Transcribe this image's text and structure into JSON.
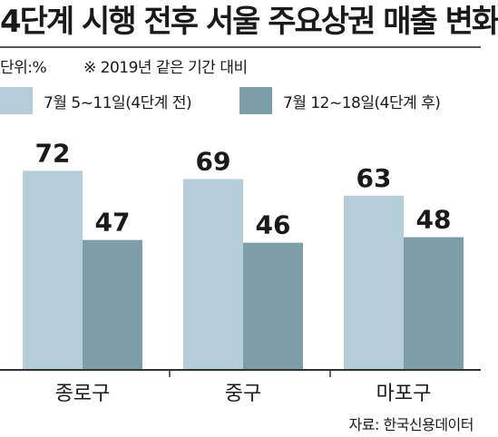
{
  "header": {
    "title": "4단계 시행 전후 서울 주요상권 매출 변화",
    "unit": "단위:%",
    "note": "※ 2019년 같은 기간 대비"
  },
  "legend": [
    {
      "label": "7월 5~11일(4단계 전)",
      "color": "#b5cdd6"
    },
    {
      "label": "7월 12~18일(4단계 후)",
      "color": "#7e9ea7"
    }
  ],
  "source": "자료: 한국신용데이터",
  "chart_data": {
    "type": "bar",
    "title": "4단계 시행 전후 서울 주요상권 매출 변화",
    "categories": [
      "종로구",
      "중구",
      "마포구"
    ],
    "series": [
      {
        "name": "7월 5~11일(4단계 전)",
        "values": [
          72,
          69,
          63
        ],
        "color": "#b5cdd6"
      },
      {
        "name": "7월 12~18일(4단계 후)",
        "values": [
          47,
          46,
          48
        ],
        "color": "#7e9ea7"
      }
    ],
    "ylim": [
      0,
      100
    ],
    "legend": "top",
    "grid": false
  }
}
